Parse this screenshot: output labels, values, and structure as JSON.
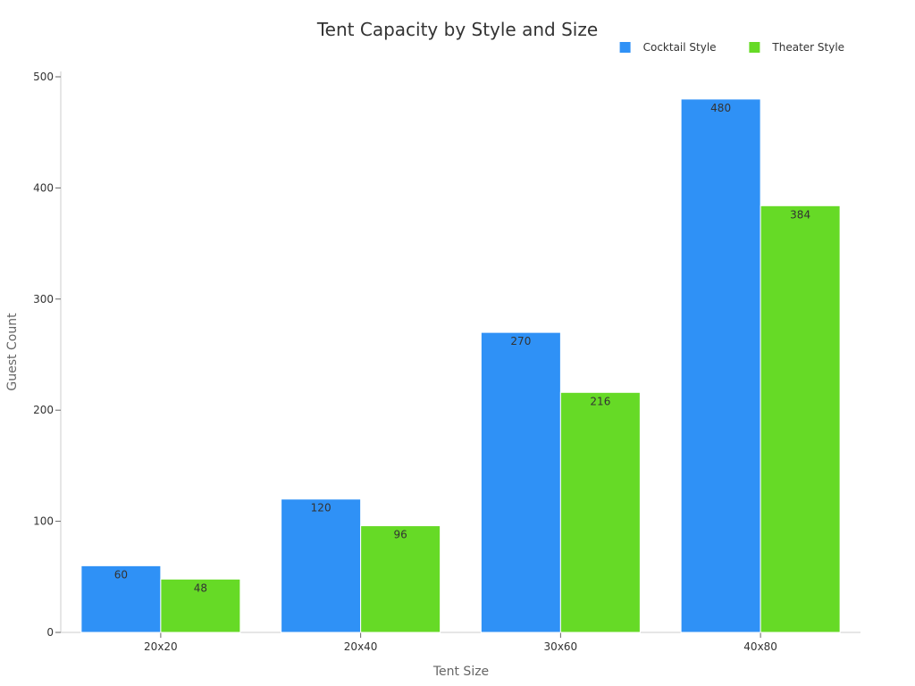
{
  "chart_data": {
    "type": "bar",
    "title": "Tent Capacity by Style and Size",
    "xlabel": "Tent Size",
    "ylabel": "Guest Count",
    "categories": [
      "20x20",
      "20x40",
      "30x60",
      "40x80"
    ],
    "series": [
      {
        "name": "Cocktail Style",
        "values": [
          60,
          120,
          270,
          480
        ],
        "color": "#2f91f6"
      },
      {
        "name": "Theater Style",
        "values": [
          48,
          96,
          216,
          384
        ],
        "color": "#66da26"
      }
    ],
    "ylim": [
      0,
      500
    ],
    "yticks": [
      0,
      100,
      200,
      300,
      400,
      500
    ],
    "grid": false,
    "legend_position": "top-right",
    "data_labels": true
  }
}
